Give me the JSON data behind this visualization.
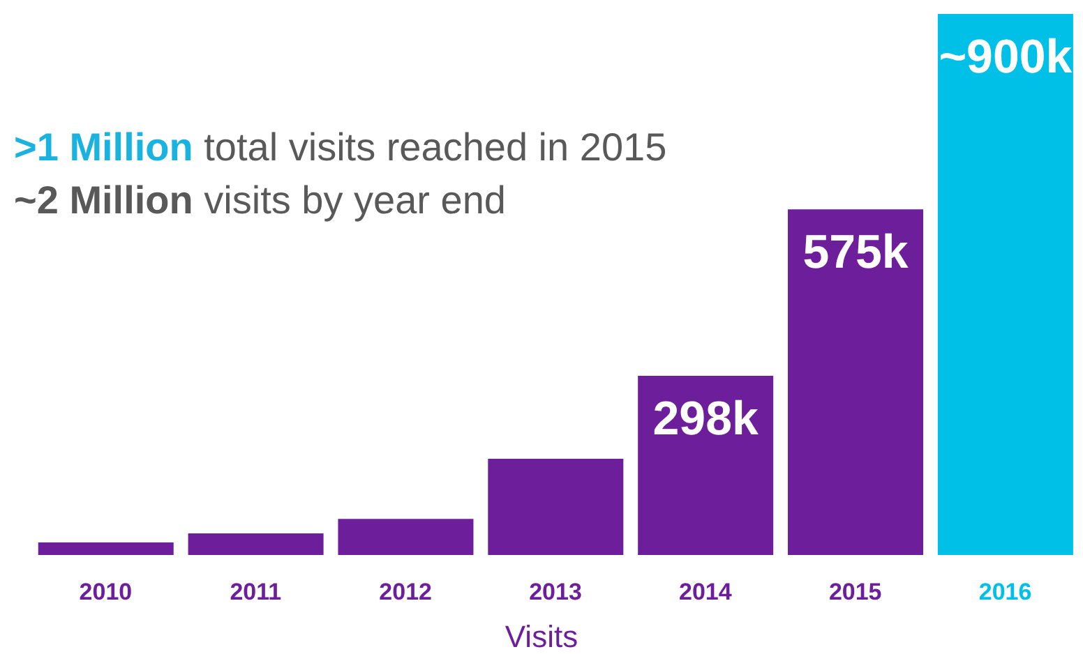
{
  "chart_data": {
    "type": "bar",
    "categories": [
      "2010",
      "2011",
      "2012",
      "2013",
      "2014",
      "2015",
      "2016"
    ],
    "values": [
      21,
      36,
      60,
      160,
      298,
      575,
      900
    ],
    "colors": [
      "#6d1f9b",
      "#6d1f9b",
      "#6d1f9b",
      "#6d1f9b",
      "#6d1f9b",
      "#6d1f9b",
      "#00c0e8"
    ],
    "value_labels": [
      null,
      null,
      null,
      null,
      "298k",
      "575k",
      "~900k"
    ],
    "xlabel": "Visits",
    "annotations": [
      ">1 Million total visits reached in 2015",
      "~2 Million visits by year end"
    ]
  }
}
